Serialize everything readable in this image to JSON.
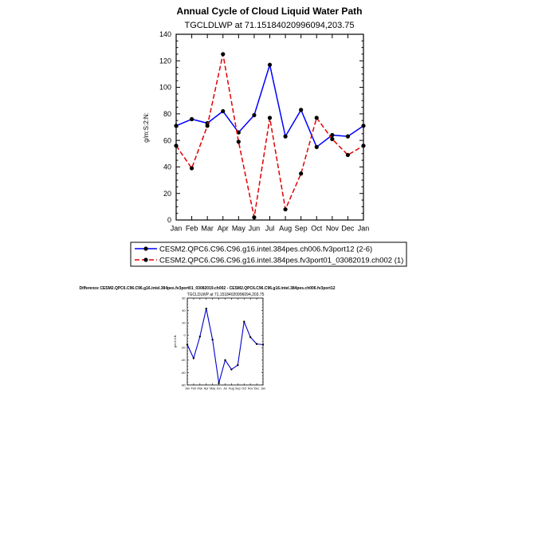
{
  "chart_data": [
    {
      "type": "line",
      "title": "Annual Cycle of Cloud Liquid Water Path",
      "subtitle": "TGCLDLWP at 71.15184020996094,203.75",
      "xlabel": "",
      "ylabel": "g/m:S:2:N:",
      "ylim": [
        0,
        140
      ],
      "yticks": [
        0,
        20,
        40,
        60,
        80,
        100,
        120,
        140
      ],
      "categories": [
        "Jan",
        "Feb",
        "Mar",
        "Apr",
        "May",
        "Jun",
        "Jul",
        "Aug",
        "Sep",
        "Oct",
        "Nov",
        "Dec",
        "Jan"
      ],
      "legend_position": "bottom",
      "series": [
        {
          "name": "CESM2.QPC6.C96.C96.g16.intel.384pes.ch006.fv3port12 (2-6)",
          "color": "#0000ff",
          "dash": "solid",
          "values": [
            71,
            76,
            73,
            82,
            66,
            79,
            117,
            63,
            83,
            55,
            64,
            63,
            71
          ]
        },
        {
          "name": "CESM2.QPC6.C96.C96.g16.intel.384pes.fv3port01_03082019.ch002 (1)",
          "color": "#e00000",
          "dash": "dashed",
          "values": [
            56,
            39,
            71,
            125,
            59,
            2,
            77,
            8,
            35,
            77,
            61,
            49,
            56
          ]
        }
      ]
    },
    {
      "type": "line",
      "title": "Difference CESM2.QPC6.C96.C96.g16.intel.384pes.fv3port01_03082019.ch002 - CESM2.QPC6.C96.C96.g16.intel.384pes.ch006.fv3port12",
      "subtitle": "TGCLDLWP at 71.15184020996094,203.75",
      "xlabel": "",
      "ylabel": "g/m:S:2:N:",
      "ylim": [
        -80,
        60
      ],
      "yticks": [
        -80,
        -60,
        -40,
        -20,
        0,
        20,
        40,
        60
      ],
      "categories": [
        "Jan",
        "Feb",
        "Mar",
        "Apr",
        "May",
        "Jun",
        "Jul",
        "Aug",
        "Sep",
        "Oct",
        "Nov",
        "Dec",
        "Jan"
      ],
      "series": [
        {
          "name": "difference",
          "color": "#0000cc",
          "dash": "solid",
          "values": [
            -15,
            -37,
            -2,
            43,
            -7,
            -77,
            -40,
            -55,
            -48,
            22,
            -3,
            -14,
            -15
          ]
        }
      ]
    }
  ]
}
